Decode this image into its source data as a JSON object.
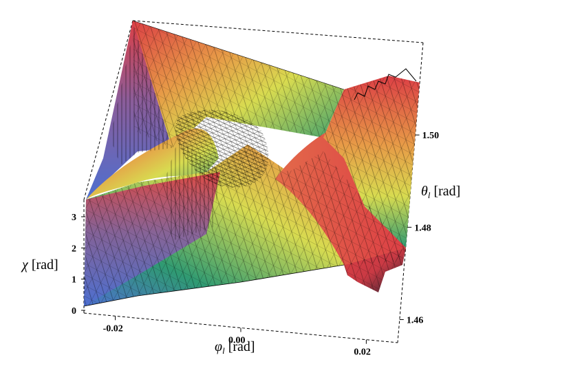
{
  "chart_data": {
    "type": "surface3d",
    "title": "",
    "colormap": [
      "#4d6fd0",
      "#2f9a72",
      "#d8db50",
      "#e79a47",
      "#dc3f45"
    ],
    "x_axis": {
      "symbol": "φ",
      "subscript": "l",
      "unit": " [rad]",
      "ticks": [
        "-0.02",
        "0.00",
        "0.02"
      ],
      "range": [
        -0.025,
        0.025
      ]
    },
    "y_axis": {
      "symbol": "θ",
      "subscript": "l",
      "unit": " [rad]",
      "ticks": [
        "1.46",
        "1.48",
        "1.50"
      ],
      "range": [
        1.455,
        1.52
      ]
    },
    "z_axis": {
      "symbol": "χ",
      "unit": " [rad]",
      "ticks": [
        "0",
        "1",
        "2",
        "3"
      ],
      "range": [
        0,
        3.3
      ]
    }
  }
}
